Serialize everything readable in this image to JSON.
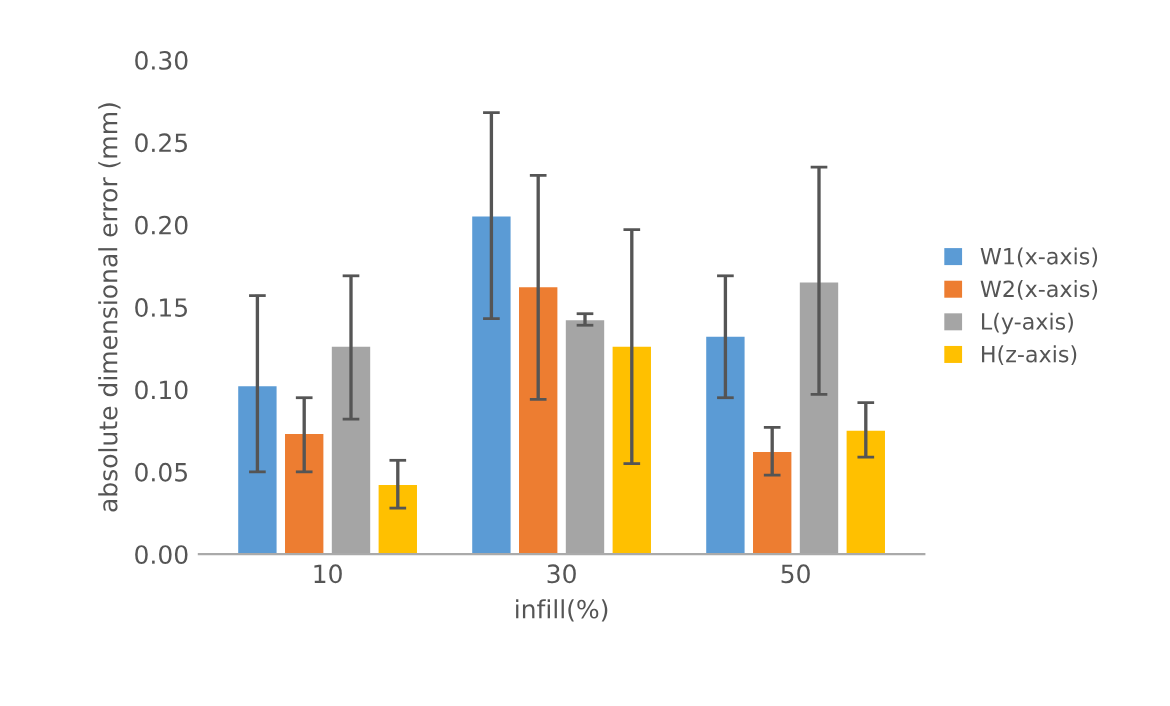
{
  "chart_data": {
    "type": "bar",
    "xlabel": "infill(%)",
    "ylabel": "absolute dimensional error (mm)",
    "categories": [
      "10",
      "30",
      "50"
    ],
    "series": [
      {
        "name": "W1(x-axis)",
        "color": "#5b9bd5",
        "values": [
          0.102,
          0.205,
          0.132
        ],
        "errors": [
          [
            0.05,
            0.157
          ],
          [
            0.143,
            0.268
          ],
          [
            0.095,
            0.169
          ]
        ]
      },
      {
        "name": "W2(x-axis)",
        "color": "#ed7d31",
        "values": [
          0.073,
          0.162,
          0.062
        ],
        "errors": [
          [
            0.05,
            0.095
          ],
          [
            0.094,
            0.23
          ],
          [
            0.048,
            0.077
          ]
        ]
      },
      {
        "name": "L(y-axis)",
        "color": "#a5a5a5",
        "values": [
          0.126,
          0.142,
          0.165
        ],
        "errors": [
          [
            0.082,
            0.169
          ],
          [
            0.139,
            0.146
          ],
          [
            0.097,
            0.235
          ]
        ]
      },
      {
        "name": "H(z-axis)",
        "color": "#ffc000",
        "values": [
          0.042,
          0.126,
          0.075
        ],
        "errors": [
          [
            0.028,
            0.057
          ],
          [
            0.055,
            0.197
          ],
          [
            0.059,
            0.092
          ]
        ]
      }
    ],
    "ylim": [
      0,
      0.3
    ],
    "yticks": [
      {
        "value": 0,
        "label": "0.00"
      },
      {
        "value": 0.05,
        "label": "0.05"
      },
      {
        "value": 0.1,
        "label": "0.10"
      },
      {
        "value": 0.15,
        "label": "0.15"
      },
      {
        "value": 0.2,
        "label": "0.20"
      },
      {
        "value": 0.25,
        "label": "0.25"
      },
      {
        "value": 0.3,
        "label": "0.30"
      }
    ],
    "grid": false,
    "legend": "right"
  }
}
